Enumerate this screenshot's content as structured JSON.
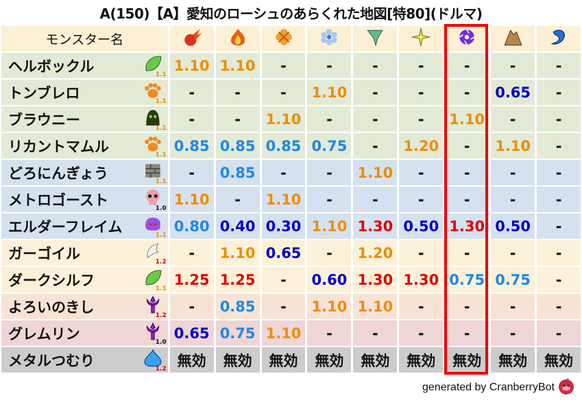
{
  "title": "A(150)【A】愛知のローシュのあらくれた地図[特80](ドルマ)",
  "header": {
    "name_label": "モンスター名",
    "elements": [
      "fire-ball-icon",
      "flame-icon",
      "explosion-icon",
      "ice-icon",
      "tornado-icon",
      "light-icon",
      "dark-icon",
      "earth-icon",
      "water-icon"
    ],
    "highlighted_column": 7
  },
  "colors": {
    "dark_blue": "#0000cc",
    "light_blue": "#1e88e5",
    "orange": "#f08c00",
    "red": "#e00000",
    "highlight": "#ee0000"
  },
  "rows": [
    {
      "name": "ヘルボックル",
      "family": "leaf-icon",
      "level": "1.1",
      "bg": "#e2ead6",
      "values": [
        "1.10",
        "1.10",
        "-",
        "-",
        "-",
        "-",
        "-",
        "-",
        "-"
      ]
    },
    {
      "name": "トンブレロ",
      "family": "paw-icon",
      "level": "1.1",
      "bg": "#e2ead6",
      "values": [
        "-",
        "-",
        "-",
        "1.10",
        "-",
        "-",
        "-",
        "0.65",
        "-"
      ]
    },
    {
      "name": "ブラウニー",
      "family": "hooded-figure-icon",
      "level": "1.1",
      "bg": "#e2ead6",
      "values": [
        "-",
        "-",
        "1.10",
        "-",
        "-",
        "-",
        "1.10",
        "-",
        "-"
      ]
    },
    {
      "name": "リカントマムル",
      "family": "paw-icon",
      "level": "1.1",
      "bg": "#e2ead6",
      "values": [
        "0.85",
        "0.85",
        "0.85",
        "0.75",
        "-",
        "1.20",
        "-",
        "1.10",
        "-"
      ]
    },
    {
      "name": "どろにんぎょう",
      "family": "brick-icon",
      "level": "1.1",
      "bg": "#d5e1ef",
      "values": [
        "-",
        "0.85",
        "-",
        "-",
        "1.10",
        "-",
        "-",
        "-",
        "-"
      ]
    },
    {
      "name": "メトロゴースト",
      "family": "skull-icon",
      "level": "1.0",
      "bg": "#d5e1ef",
      "values": [
        "1.10",
        "-",
        "1.10",
        "-",
        "-",
        "-",
        "-",
        "-",
        "-"
      ]
    },
    {
      "name": "エルダーフレイム",
      "family": "purple-ghost-icon",
      "level": "1.1",
      "bg": "#d5e1ef",
      "values": [
        "0.80",
        "0.40",
        "0.30",
        "1.10",
        "1.30",
        "0.50",
        "1.30",
        "0.50",
        "-"
      ]
    },
    {
      "name": "ガーゴイル",
      "family": "wing-icon",
      "level": "1.2",
      "bg": "#fcf1d8",
      "values": [
        "-",
        "1.10",
        "0.65",
        "-",
        "1.20",
        "-",
        "-",
        "-",
        "-"
      ]
    },
    {
      "name": "ダークシルフ",
      "family": "leaf-icon",
      "level": "1.1",
      "bg": "#fcf1d8",
      "values": [
        "1.25",
        "1.25",
        "-",
        "0.60",
        "1.30",
        "1.30",
        "0.75",
        "0.75",
        "-"
      ]
    },
    {
      "name": "よろいのきし",
      "family": "trident-icon",
      "level": "1.2",
      "bg": "#f7e3d5",
      "values": [
        "-",
        "0.85",
        "-",
        "1.10",
        "1.10",
        "-",
        "-",
        "-",
        "-"
      ]
    },
    {
      "name": "グレムリン",
      "family": "trident-icon",
      "level": "1.0",
      "bg": "#efd5d5",
      "values": [
        "0.65",
        "0.75",
        "1.10",
        "-",
        "-",
        "-",
        "-",
        "-",
        "-"
      ]
    },
    {
      "name": "メタルつむり",
      "family": "slime-icon",
      "level": "1.2",
      "bg": "#cccccc",
      "values": [
        "無効",
        "無効",
        "無効",
        "無効",
        "無効",
        "無効",
        "無効",
        "無効",
        "無効"
      ]
    }
  ],
  "footer": "generated by CranberryBot"
}
